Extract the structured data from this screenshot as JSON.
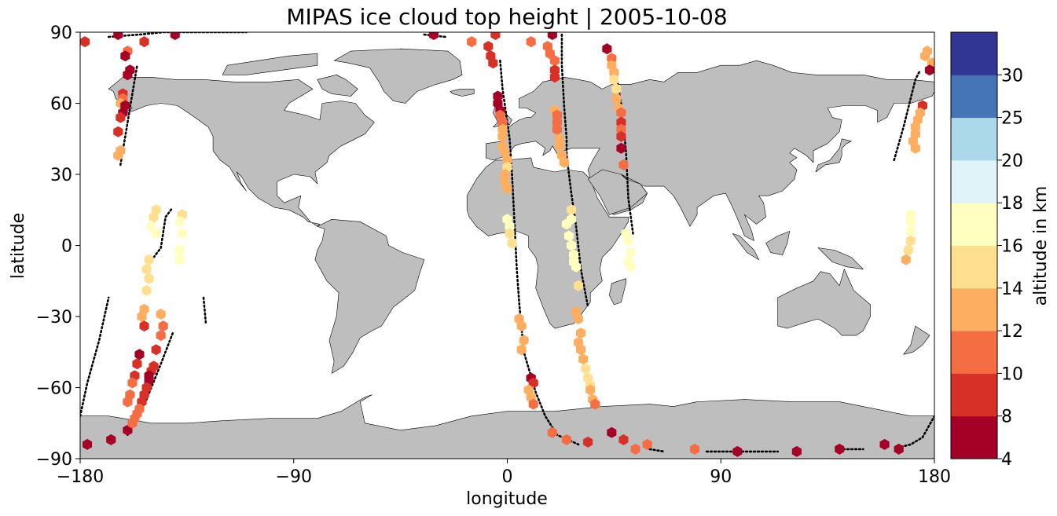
{
  "figure": {
    "title": "MIPAS ice cloud top height | 2005-10-08",
    "xlabel": "longitude",
    "ylabel": "latitude",
    "x_ticks": [
      "−180",
      "−90",
      "0",
      "90",
      "180"
    ],
    "y_ticks": [
      "90",
      "60",
      "30",
      "0",
      "−30",
      "−60",
      "−90"
    ],
    "colorbar": {
      "label": "altitude in km",
      "ticks": [
        "4",
        "8",
        "10",
        "12",
        "14",
        "16",
        "18",
        "20",
        "25",
        "30"
      ],
      "bounds": [
        4,
        8,
        10,
        12,
        14,
        16,
        18,
        20,
        25,
        30
      ],
      "colors": [
        "#a50026",
        "#d73027",
        "#f46d43",
        "#fdae61",
        "#fee090",
        "#ffffbf",
        "#e0f3f8",
        "#abd9e9",
        "#4575b4",
        "#313695"
      ]
    },
    "land_color": "#bebebe",
    "ocean_color": "#ffffff"
  },
  "chart_data": {
    "type": "scatter",
    "title": "MIPAS ice cloud top height | 2005-10-08",
    "xlabel": "longitude",
    "ylabel": "latitude",
    "xlim": [
      -180,
      180
    ],
    "ylim": [
      -90,
      90
    ],
    "color_variable": "altitude in km",
    "tracks": [
      [
        [
          -163,
          34
        ],
        [
          -160,
          52
        ],
        [
          -158,
          64
        ],
        [
          -156,
          76
        ]
      ],
      [
        [
          -180,
          -72
        ],
        [
          -177,
          -58
        ],
        [
          -172,
          -40
        ],
        [
          -168,
          -22
        ]
      ],
      [
        [
          -149,
          -5
        ],
        [
          -146,
          -1
        ],
        [
          -144,
          12
        ],
        [
          -141,
          16
        ]
      ],
      [
        [
          -160,
          -80
        ],
        [
          -152,
          -65
        ],
        [
          -146,
          -50
        ],
        [
          -141,
          -37
        ]
      ],
      [
        [
          -128,
          -22
        ],
        [
          -127,
          -33
        ]
      ],
      [
        [
          -3,
          78
        ],
        [
          -2,
          66
        ],
        [
          1,
          45
        ],
        [
          2,
          30
        ],
        [
          3,
          10
        ],
        [
          4,
          -10
        ],
        [
          5,
          -24
        ],
        [
          7,
          -45
        ],
        [
          12,
          -62
        ],
        [
          16,
          -72
        ],
        [
          21,
          -80
        ],
        [
          30,
          -84
        ]
      ],
      [
        [
          23,
          89
        ],
        [
          23,
          76
        ],
        [
          24,
          58
        ],
        [
          25,
          45
        ],
        [
          25,
          38
        ],
        [
          27,
          22
        ],
        [
          29,
          8
        ],
        [
          31,
          -10
        ],
        [
          34,
          -26
        ]
      ],
      [
        [
          45,
          78
        ],
        [
          48,
          60
        ],
        [
          50,
          40
        ],
        [
          51,
          20
        ],
        [
          53,
          5
        ]
      ],
      [
        [
          60,
          -86
        ],
        [
          66,
          -87
        ]
      ],
      [
        [
          84,
          -87
        ],
        [
          100,
          -87
        ],
        [
          114,
          -87
        ]
      ],
      [
        [
          140,
          -86
        ],
        [
          150,
          -86
        ]
      ],
      [
        [
          166,
          -85
        ],
        [
          170,
          -84
        ],
        [
          175,
          -81
        ],
        [
          180,
          -72
        ]
      ],
      [
        [
          163,
          36
        ],
        [
          167,
          50
        ],
        [
          172,
          70
        ],
        [
          174,
          74
        ]
      ],
      [
        [
          -168,
          88
        ],
        [
          -155,
          89
        ],
        [
          -145,
          90
        ],
        [
          -130,
          90
        ],
        [
          -110,
          90
        ]
      ],
      [
        [
          -35,
          89
        ],
        [
          -26,
          88
        ]
      ]
    ],
    "points": [
      {
        "lon": -178,
        "lat": 86,
        "alt": 8
      },
      {
        "lon": -164,
        "lat": 89,
        "alt": 6
      },
      {
        "lon": -153,
        "lat": 86,
        "alt": 9
      },
      {
        "lon": -140,
        "lat": 89,
        "alt": 6
      },
      {
        "lon": -160,
        "lat": 82,
        "alt": 10
      },
      {
        "lon": -161,
        "lat": 80,
        "alt": 6
      },
      {
        "lon": -159,
        "lat": 74,
        "alt": 6
      },
      {
        "lon": -160,
        "lat": 72,
        "alt": 6
      },
      {
        "lon": -162,
        "lat": 64,
        "alt": 9
      },
      {
        "lon": -162,
        "lat": 62,
        "alt": 10
      },
      {
        "lon": -163,
        "lat": 60,
        "alt": 12
      },
      {
        "lon": -161,
        "lat": 59,
        "alt": 6
      },
      {
        "lon": -162,
        "lat": 56,
        "alt": 6
      },
      {
        "lon": -163,
        "lat": 54,
        "alt": 8
      },
      {
        "lon": -164,
        "lat": 48,
        "alt": 8
      },
      {
        "lon": -163,
        "lat": 40,
        "alt": 12
      },
      {
        "lon": -164,
        "lat": 38,
        "alt": 13
      },
      {
        "lon": -148,
        "lat": 15,
        "alt": 15
      },
      {
        "lon": -149,
        "lat": 12,
        "alt": 15
      },
      {
        "lon": -150,
        "lat": 8,
        "alt": 16.5
      },
      {
        "lon": -148,
        "lat": 5,
        "alt": 16.5
      },
      {
        "lon": -151,
        "lat": -6,
        "alt": 15
      },
      {
        "lon": -152,
        "lat": -10,
        "alt": 15
      },
      {
        "lon": -151,
        "lat": -14,
        "alt": 15
      },
      {
        "lon": -152,
        "lat": -19,
        "alt": 14.5
      },
      {
        "lon": -153,
        "lat": -27,
        "alt": 12
      },
      {
        "lon": -154,
        "lat": -30,
        "alt": 12
      },
      {
        "lon": -153,
        "lat": -34,
        "alt": 9
      },
      {
        "lon": -155,
        "lat": -46,
        "alt": 6
      },
      {
        "lon": -156,
        "lat": -50,
        "alt": 9
      },
      {
        "lon": -157,
        "lat": -55,
        "alt": 9
      },
      {
        "lon": -158,
        "lat": -58,
        "alt": 10
      },
      {
        "lon": -159,
        "lat": -63,
        "alt": 10
      },
      {
        "lon": -160,
        "lat": -66,
        "alt": 11
      },
      {
        "lon": -177,
        "lat": -84,
        "alt": 6
      },
      {
        "lon": -167,
        "lat": -82,
        "alt": 6
      },
      {
        "lon": -160,
        "lat": -78,
        "alt": 6
      },
      {
        "lon": -137,
        "lat": 13,
        "alt": 15
      },
      {
        "lon": -138,
        "lat": 10,
        "alt": 16.5
      },
      {
        "lon": -137,
        "lat": 5,
        "alt": 16.5
      },
      {
        "lon": -138,
        "lat": -2,
        "alt": 16.5
      },
      {
        "lon": -138,
        "lat": -6,
        "alt": 16.5
      },
      {
        "lon": -146,
        "lat": -29,
        "alt": 12
      },
      {
        "lon": -145,
        "lat": -34,
        "alt": 11
      },
      {
        "lon": -146,
        "lat": -38,
        "alt": 11
      },
      {
        "lon": -148,
        "lat": -44,
        "alt": 9
      },
      {
        "lon": -149,
        "lat": -51,
        "alt": 9
      },
      {
        "lon": -150,
        "lat": -53,
        "alt": 8
      },
      {
        "lon": -151,
        "lat": -55,
        "alt": 6
      },
      {
        "lon": -151,
        "lat": -57,
        "alt": 6
      },
      {
        "lon": -152,
        "lat": -60,
        "alt": 9
      },
      {
        "lon": -153,
        "lat": -63,
        "alt": 9
      },
      {
        "lon": -154,
        "lat": -66,
        "alt": 9
      },
      {
        "lon": -155,
        "lat": -69,
        "alt": 10
      },
      {
        "lon": -156,
        "lat": -71,
        "alt": 10
      },
      {
        "lon": -157,
        "lat": -73,
        "alt": 10
      },
      {
        "lon": -158,
        "lat": -75,
        "alt": 10
      },
      {
        "lon": -31,
        "lat": 89,
        "alt": 6
      },
      {
        "lon": -15,
        "lat": 86,
        "alt": 11
      },
      {
        "lon": -5,
        "lat": 89,
        "alt": 9
      },
      {
        "lon": 10,
        "lat": 86,
        "alt": 11
      },
      {
        "lon": 19,
        "lat": 89,
        "alt": 6
      },
      {
        "lon": -8,
        "lat": 84,
        "alt": 9
      },
      {
        "lon": -7,
        "lat": 80,
        "alt": 9
      },
      {
        "lon": -6,
        "lat": 77,
        "alt": 9
      },
      {
        "lon": -4,
        "lat": 63,
        "alt": 6
      },
      {
        "lon": -4,
        "lat": 60,
        "alt": 6
      },
      {
        "lon": -3,
        "lat": 57,
        "alt": 6
      },
      {
        "lon": -3,
        "lat": 55,
        "alt": 10
      },
      {
        "lon": -2,
        "lat": 52,
        "alt": 11
      },
      {
        "lon": -2,
        "lat": 49,
        "alt": 12
      },
      {
        "lon": -2,
        "lat": 46,
        "alt": 13
      },
      {
        "lon": -2,
        "lat": 42,
        "alt": 13
      },
      {
        "lon": -1,
        "lat": 39,
        "alt": 13
      },
      {
        "lon": 0,
        "lat": 36,
        "alt": 13
      },
      {
        "lon": 0,
        "lat": 33,
        "alt": 15
      },
      {
        "lon": -1,
        "lat": 30,
        "alt": 13
      },
      {
        "lon": -1,
        "lat": 27,
        "alt": 13
      },
      {
        "lon": 0,
        "lat": 24,
        "alt": 12
      },
      {
        "lon": 0,
        "lat": 11,
        "alt": 16.5
      },
      {
        "lon": 1,
        "lat": 8,
        "alt": 16.5
      },
      {
        "lon": 1,
        "lat": 5,
        "alt": 15
      },
      {
        "lon": 2,
        "lat": 1,
        "alt": 14.5
      },
      {
        "lon": 5,
        "lat": -31,
        "alt": 13
      },
      {
        "lon": 6,
        "lat": -34,
        "alt": 13
      },
      {
        "lon": 7,
        "lat": -40,
        "alt": 12
      },
      {
        "lon": 6,
        "lat": -44,
        "alt": 13
      },
      {
        "lon": 10,
        "lat": -56,
        "alt": 6
      },
      {
        "lon": 11,
        "lat": -58,
        "alt": 9
      },
      {
        "lon": 9,
        "lat": -61,
        "alt": 13
      },
      {
        "lon": 10,
        "lat": -64,
        "alt": 12
      },
      {
        "lon": 11,
        "lat": -67,
        "alt": 11
      },
      {
        "lon": 19,
        "lat": -79,
        "alt": 11
      },
      {
        "lon": 25,
        "lat": -82,
        "alt": 11
      },
      {
        "lon": 17,
        "lat": 84,
        "alt": 11
      },
      {
        "lon": 18,
        "lat": 81,
        "alt": 10
      },
      {
        "lon": 20,
        "lat": 78,
        "alt": 10
      },
      {
        "lon": 20,
        "lat": 74,
        "alt": 9
      },
      {
        "lon": 20,
        "lat": 71,
        "alt": 9
      },
      {
        "lon": 20,
        "lat": 57,
        "alt": 12
      },
      {
        "lon": 21,
        "lat": 55,
        "alt": 11
      },
      {
        "lon": 21,
        "lat": 52,
        "alt": 11
      },
      {
        "lon": 21,
        "lat": 49,
        "alt": 11
      },
      {
        "lon": 22,
        "lat": 45,
        "alt": 13
      },
      {
        "lon": 22,
        "lat": 42,
        "alt": 13
      },
      {
        "lon": 23,
        "lat": 38,
        "alt": 12
      },
      {
        "lon": 24,
        "lat": 35,
        "alt": 13
      },
      {
        "lon": 27,
        "lat": 15,
        "alt": 15
      },
      {
        "lon": 27,
        "lat": 11,
        "alt": 16.5
      },
      {
        "lon": 25,
        "lat": 9,
        "alt": 16.5
      },
      {
        "lon": 26,
        "lat": 4,
        "alt": 16.5
      },
      {
        "lon": 27,
        "lat": 0,
        "alt": 16.5
      },
      {
        "lon": 28,
        "lat": -4,
        "alt": 16.5
      },
      {
        "lon": 28,
        "lat": -7,
        "alt": 16.5
      },
      {
        "lon": 29,
        "lat": -9,
        "alt": 16.5
      },
      {
        "lon": 30,
        "lat": -17,
        "alt": 15
      },
      {
        "lon": 29,
        "lat": -28,
        "alt": 12
      },
      {
        "lon": 30,
        "lat": -31,
        "alt": 12
      },
      {
        "lon": 31,
        "lat": -37,
        "alt": 13
      },
      {
        "lon": 30,
        "lat": -41,
        "alt": 12
      },
      {
        "lon": 31,
        "lat": -44,
        "alt": 13
      },
      {
        "lon": 32,
        "lat": -48,
        "alt": 13
      },
      {
        "lon": 33,
        "lat": -52,
        "alt": 15
      },
      {
        "lon": 34,
        "lat": -56,
        "alt": 15
      },
      {
        "lon": 35,
        "lat": -59,
        "alt": 14
      },
      {
        "lon": 35,
        "lat": -61,
        "alt": 13
      },
      {
        "lon": 36,
        "lat": -65,
        "alt": 12
      },
      {
        "lon": 37,
        "lat": -67,
        "alt": 11
      },
      {
        "lon": 34,
        "lat": -83,
        "alt": 9
      },
      {
        "lon": 42,
        "lat": 83,
        "alt": 6
      },
      {
        "lon": 44,
        "lat": 79,
        "alt": 11
      },
      {
        "lon": 44,
        "lat": 76,
        "alt": 12
      },
      {
        "lon": 45,
        "lat": 73,
        "alt": 13
      },
      {
        "lon": 45,
        "lat": 70,
        "alt": 14
      },
      {
        "lon": 46,
        "lat": 66,
        "alt": 15
      },
      {
        "lon": 46,
        "lat": 62,
        "alt": 13
      },
      {
        "lon": 47,
        "lat": 58,
        "alt": 13
      },
      {
        "lon": 48,
        "lat": 56,
        "alt": 11
      },
      {
        "lon": 48,
        "lat": 52,
        "alt": 9
      },
      {
        "lon": 48,
        "lat": 49,
        "alt": 10
      },
      {
        "lon": 48,
        "lat": 46,
        "alt": 9
      },
      {
        "lon": 48,
        "lat": 41,
        "alt": 6
      },
      {
        "lon": 49,
        "lat": 34,
        "alt": 11
      },
      {
        "lon": 50,
        "lat": 5,
        "alt": 16.5
      },
      {
        "lon": 51,
        "lat": 2,
        "alt": 16.5
      },
      {
        "lon": 52,
        "lat": -3,
        "alt": 16.5
      },
      {
        "lon": 51,
        "lat": -7,
        "alt": 16.5
      },
      {
        "lon": 52,
        "lat": -9,
        "alt": 16.5
      },
      {
        "lon": 44,
        "lat": -79,
        "alt": 6
      },
      {
        "lon": 49,
        "lat": -82,
        "alt": 9
      },
      {
        "lon": 54,
        "lat": -86,
        "alt": 10
      },
      {
        "lon": 59,
        "lat": -84,
        "alt": 11
      },
      {
        "lon": 79,
        "lat": -86,
        "alt": 11
      },
      {
        "lon": 97,
        "lat": -87,
        "alt": 6
      },
      {
        "lon": 122,
        "lat": -87,
        "alt": 6
      },
      {
        "lon": 140,
        "lat": -86,
        "alt": 6
      },
      {
        "lon": 159,
        "lat": -84,
        "alt": 6
      },
      {
        "lon": 165,
        "lat": -86,
        "alt": 6
      },
      {
        "lon": 177,
        "lat": 82,
        "alt": 12
      },
      {
        "lon": 176,
        "lat": 80,
        "alt": 12
      },
      {
        "lon": 179,
        "lat": 77,
        "alt": 12
      },
      {
        "lon": 178,
        "lat": 74,
        "alt": 6
      },
      {
        "lon": 175,
        "lat": 59,
        "alt": 8
      },
      {
        "lon": 174,
        "lat": 56,
        "alt": 12
      },
      {
        "lon": 173,
        "lat": 53,
        "alt": 13
      },
      {
        "lon": 172,
        "lat": 50,
        "alt": 13
      },
      {
        "lon": 172,
        "lat": 47,
        "alt": 13
      },
      {
        "lon": 171,
        "lat": 44,
        "alt": 13
      },
      {
        "lon": 172,
        "lat": 41,
        "alt": 13
      },
      {
        "lon": 170,
        "lat": 13,
        "alt": 16.5
      },
      {
        "lon": 170,
        "lat": 10,
        "alt": 16.5
      },
      {
        "lon": 170,
        "lat": 6,
        "alt": 16.5
      },
      {
        "lon": 170,
        "lat": 2,
        "alt": 15
      },
      {
        "lon": 169,
        "lat": -2,
        "alt": 15
      },
      {
        "lon": 168,
        "lat": -6,
        "alt": 13
      }
    ]
  }
}
